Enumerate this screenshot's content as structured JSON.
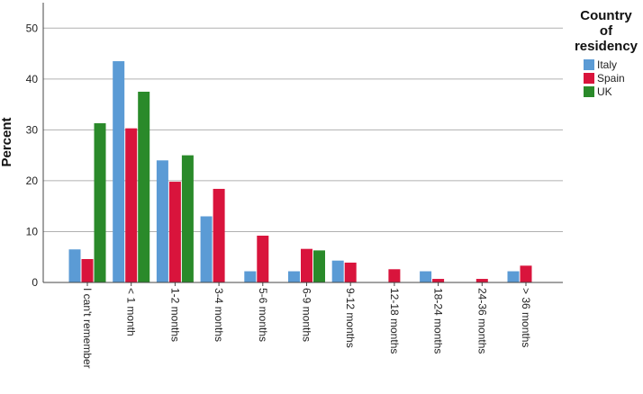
{
  "chart_data": {
    "type": "bar",
    "ylabel": "Percent",
    "xlabel": "",
    "ylim": [
      0,
      55
    ],
    "yticks": [
      0,
      10,
      20,
      30,
      40,
      50
    ],
    "grid": true,
    "legend": {
      "title_lines": [
        "Country",
        "of",
        "residency"
      ],
      "placement": "right"
    },
    "categories": [
      "I can't remember",
      "< 1 month",
      "1-2 months",
      "3-4 months",
      "5-6 months",
      "6-9 months",
      "9-12 months",
      "12-18 months",
      "18-24 months",
      "24-36 months",
      "> 36 months"
    ],
    "series": [
      {
        "name": "Italy",
        "color": "#5b9bd5",
        "values": [
          6.5,
          43.5,
          24,
          13,
          2.2,
          2.2,
          4.3,
          null,
          2.2,
          null,
          2.2
        ]
      },
      {
        "name": "Spain",
        "color": "#d9143c",
        "values": [
          4.6,
          30.3,
          19.8,
          18.4,
          9.2,
          6.6,
          3.9,
          2.6,
          0.7,
          0.7,
          3.3
        ]
      },
      {
        "name": "UK",
        "color": "#2a8a2a",
        "values": [
          31.3,
          37.5,
          25,
          null,
          null,
          6.3,
          null,
          null,
          null,
          null,
          null
        ]
      }
    ]
  }
}
